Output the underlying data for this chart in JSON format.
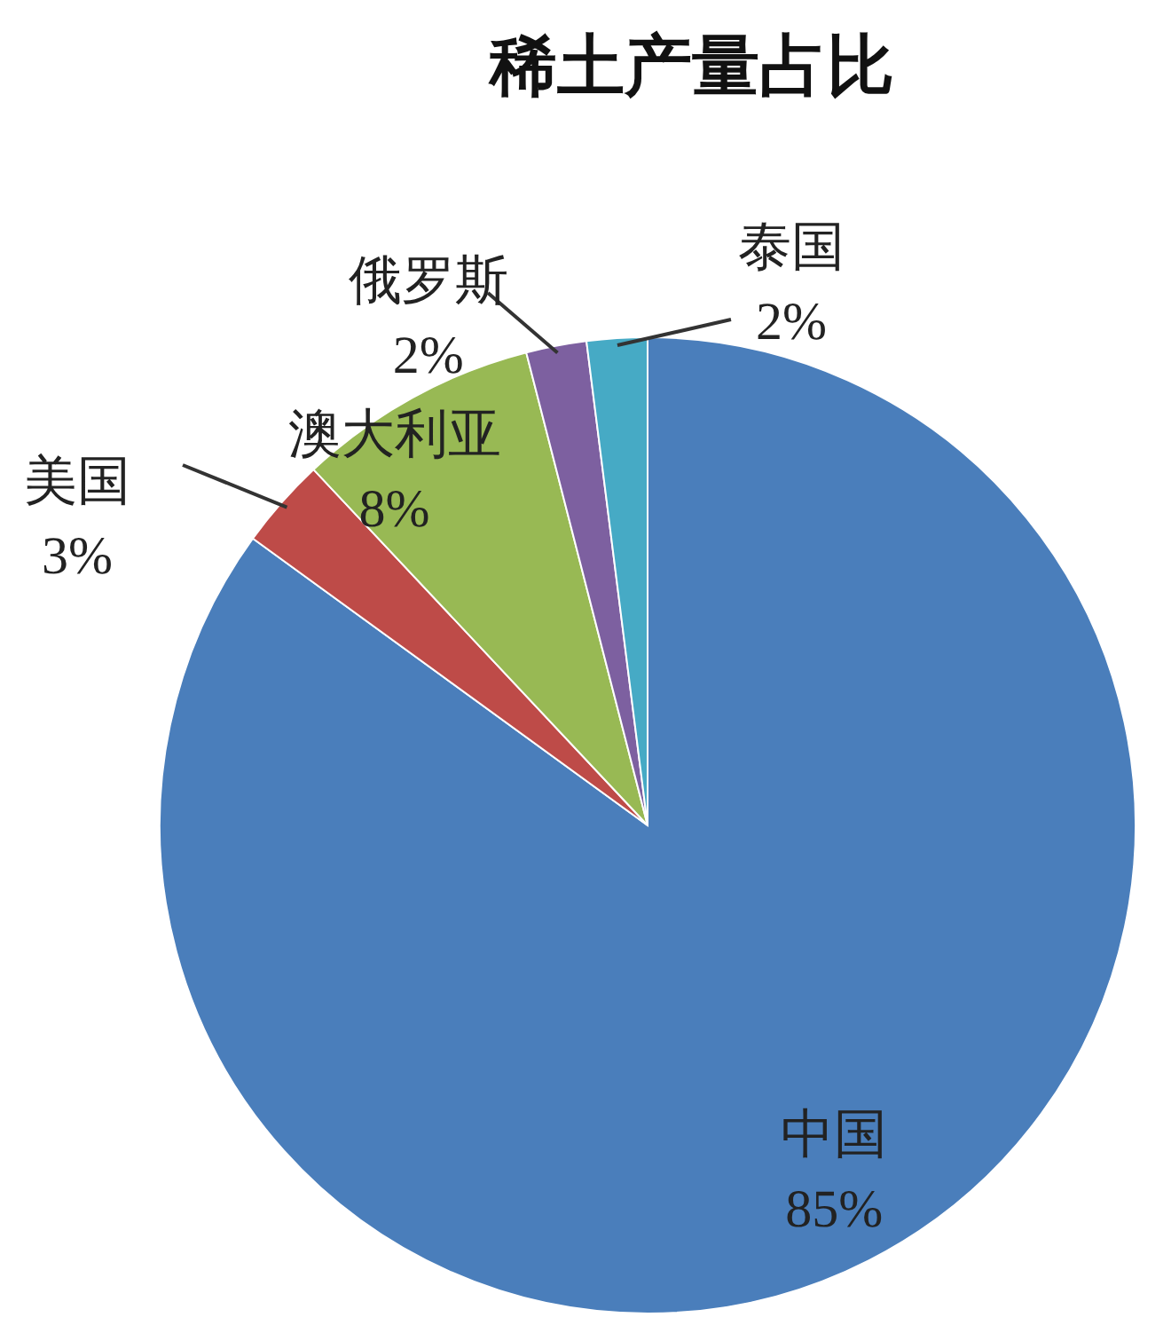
{
  "chart_data": {
    "type": "pie",
    "title": "稀土产量占比",
    "categories": [
      "中国",
      "美国",
      "澳大利亚",
      "俄罗斯",
      "泰国"
    ],
    "values": [
      85,
      3,
      8,
      2,
      2
    ],
    "colors": [
      "#4a7ebb",
      "#be4b48",
      "#98b954",
      "#7d60a0",
      "#46aac5"
    ],
    "value_labels": [
      "85%",
      "3%",
      "8%",
      "2%",
      "2%"
    ],
    "legend": false
  }
}
